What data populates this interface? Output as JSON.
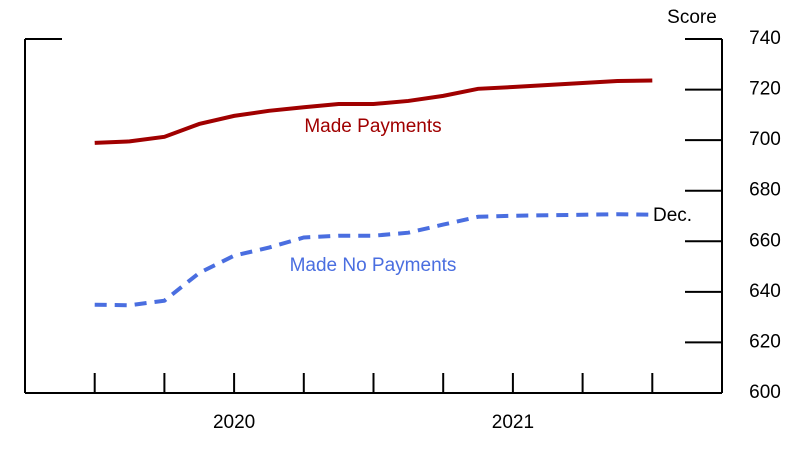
{
  "chart_data": {
    "type": "line",
    "y_label": "Score",
    "annotations": [
      "Made Payments",
      "Made No Payments",
      "Dec."
    ],
    "x": [
      2020,
      2020.125,
      2020.25,
      2020.375,
      2020.5,
      2020.625,
      2020.75,
      2020.875,
      2021,
      2021.125,
      2021.25,
      2021.375,
      2021.5,
      2021.625,
      2021.75,
      2021.875,
      2022
    ],
    "series": [
      {
        "name": "Made Payments",
        "color": "#a00000",
        "dash": false,
        "values": [
          698.9,
          699.5,
          701.3,
          706.4,
          709.6,
          711.6,
          713,
          714.3,
          714.3,
          715.5,
          717.5,
          720.3,
          721,
          721.8,
          722.6,
          723.4,
          723.6
        ]
      },
      {
        "name": "Made No Payments",
        "color": "#4a6ee0",
        "dash": true,
        "values": [
          634.9,
          634.7,
          636.5,
          647.5,
          654.3,
          657.5,
          661.5,
          662.2,
          662.2,
          663.4,
          666.6,
          669.7,
          670.1,
          670.3,
          670.5,
          670.7,
          670.5
        ]
      }
    ],
    "xlim": [
      2019.75,
      2022.25
    ],
    "xticks": [
      2020,
      2020.25,
      2020.5,
      2020.75,
      2021,
      2021.25,
      2021.5,
      2021.75,
      2022
    ],
    "xtick_labels": [
      {
        "value": 2020.5,
        "label": "2020"
      },
      {
        "value": 2021.5,
        "label": "2021"
      }
    ],
    "ylim": [
      600,
      740
    ],
    "yticks": [
      600,
      620,
      640,
      660,
      680,
      700,
      720,
      740
    ],
    "y_axis_side": "right"
  }
}
